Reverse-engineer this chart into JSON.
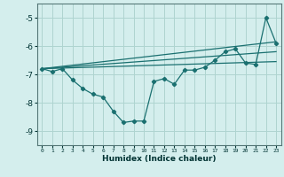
{
  "xlabel": "Humidex (Indice chaleur)",
  "bg_color": "#d4eeed",
  "grid_color": "#aed4d0",
  "line_color": "#1a7070",
  "xlim": [
    -0.5,
    23.5
  ],
  "ylim": [
    -9.5,
    -4.5
  ],
  "yticks": [
    -9,
    -8,
    -7,
    -6,
    -5
  ],
  "xticks": [
    0,
    1,
    2,
    3,
    4,
    5,
    6,
    7,
    8,
    9,
    10,
    11,
    12,
    13,
    14,
    15,
    16,
    17,
    18,
    19,
    20,
    21,
    22,
    23
  ],
  "series1_x": [
    0,
    1,
    2,
    3,
    4,
    5,
    6,
    7,
    8,
    9,
    10,
    11,
    12,
    13,
    14,
    15,
    16,
    17,
    18,
    19,
    20,
    21,
    22,
    23
  ],
  "series1_y": [
    -6.8,
    -6.9,
    -6.8,
    -7.2,
    -7.5,
    -7.7,
    -7.8,
    -8.3,
    -8.7,
    -8.65,
    -8.65,
    -7.25,
    -7.15,
    -7.35,
    -6.85,
    -6.85,
    -6.75,
    -6.5,
    -6.2,
    -6.1,
    -6.6,
    -6.65,
    -5.0,
    -5.9
  ],
  "series2_x": [
    0,
    23
  ],
  "series2_y": [
    -6.8,
    -5.85
  ],
  "series3_x": [
    0,
    23
  ],
  "series3_y": [
    -6.8,
    -6.2
  ],
  "series4_x": [
    0,
    23
  ],
  "series4_y": [
    -6.8,
    -6.55
  ]
}
